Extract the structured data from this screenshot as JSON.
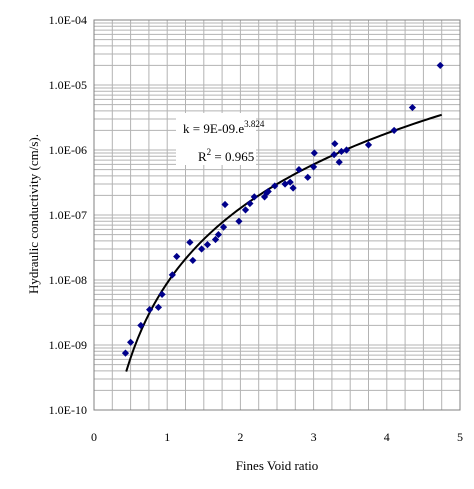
{
  "chart_data": {
    "type": "scatter",
    "xlabel": "Fines Void ratio",
    "ylabel": "Hydraulic conductivity (cm/s).",
    "xlim": [
      0,
      5
    ],
    "ylim": [
      1e-10,
      0.0001
    ],
    "y_scale": "log",
    "grid": "both axes, minor and major",
    "legend": "none",
    "x_ticks": [
      "0",
      "1",
      "2",
      "3",
      "4",
      "5"
    ],
    "y_ticks": [
      "1.0E-10",
      "1.0E-09",
      "1.0E-08",
      "1.0E-07",
      "1.0E-06",
      "1.0E-05",
      "1.0E-04"
    ],
    "marker_color": "#00008B",
    "fit_color": "#000000",
    "annotation": {
      "equation_prefix": "k = 9E-09.e",
      "equation_exponent": "3.824",
      "r2_prefix": "R",
      "r2_exponent": "2",
      "r2_value": " = 0.965"
    },
    "fit": {
      "form": "k = 9E-09 * e^3.824",
      "coefficient": 9e-09,
      "exponent": 3.824,
      "x_range": [
        0.44,
        4.75
      ]
    },
    "points": [
      {
        "x": 0.43,
        "y": 7.5e-10
      },
      {
        "x": 0.5,
        "y": 1.1e-09
      },
      {
        "x": 0.64,
        "y": 2e-09
      },
      {
        "x": 0.76,
        "y": 3.5e-09
      },
      {
        "x": 0.88,
        "y": 3.8e-09
      },
      {
        "x": 0.93,
        "y": 6e-09
      },
      {
        "x": 1.07,
        "y": 1.2e-08
      },
      {
        "x": 1.13,
        "y": 2.3e-08
      },
      {
        "x": 1.31,
        "y": 3.8e-08
      },
      {
        "x": 1.35,
        "y": 2e-08
      },
      {
        "x": 1.47,
        "y": 3e-08
      },
      {
        "x": 1.55,
        "y": 3.5e-08
      },
      {
        "x": 1.66,
        "y": 4.2e-08
      },
      {
        "x": 1.7,
        "y": 5e-08
      },
      {
        "x": 1.77,
        "y": 6.5e-08
      },
      {
        "x": 1.79,
        "y": 1.45e-07
      },
      {
        "x": 1.98,
        "y": 8e-08
      },
      {
        "x": 2.07,
        "y": 1.2e-07
      },
      {
        "x": 2.13,
        "y": 1.5e-07
      },
      {
        "x": 2.19,
        "y": 1.9e-07
      },
      {
        "x": 2.33,
        "y": 1.9e-07
      },
      {
        "x": 2.36,
        "y": 2.2e-07
      },
      {
        "x": 2.38,
        "y": 2.3e-07
      },
      {
        "x": 2.47,
        "y": 2.8e-07
      },
      {
        "x": 2.61,
        "y": 3e-07
      },
      {
        "x": 2.68,
        "y": 3.2e-07
      },
      {
        "x": 2.72,
        "y": 2.6e-07
      },
      {
        "x": 2.8,
        "y": 5e-07
      },
      {
        "x": 2.92,
        "y": 3.8e-07
      },
      {
        "x": 3.0,
        "y": 5.5e-07
      },
      {
        "x": 3.01,
        "y": 9e-07
      },
      {
        "x": 3.28,
        "y": 8.5e-07
      },
      {
        "x": 3.29,
        "y": 1.25e-06
      },
      {
        "x": 3.35,
        "y": 6.5e-07
      },
      {
        "x": 3.38,
        "y": 9.5e-07
      },
      {
        "x": 3.45,
        "y": 1e-06
      },
      {
        "x": 3.75,
        "y": 1.2e-06
      },
      {
        "x": 4.1,
        "y": 2e-06
      },
      {
        "x": 4.35,
        "y": 4.5e-06
      },
      {
        "x": 4.73,
        "y": 2e-05
      }
    ]
  }
}
